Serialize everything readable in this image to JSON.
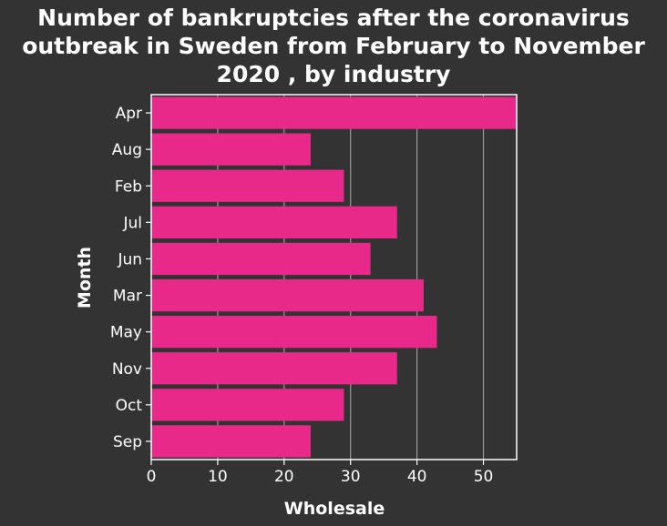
{
  "chart_data": {
    "type": "bar",
    "orientation": "horizontal",
    "title": "Number of bankruptcies after the coronavirus outbreak in Sweden from February to November 2020 , by industry",
    "xlabel": "Wholesale",
    "ylabel": "Month",
    "categories": [
      "Apr",
      "Aug",
      "Feb",
      "Jul",
      "Jun",
      "Mar",
      "May",
      "Nov",
      "Oct",
      "Sep"
    ],
    "values": [
      55,
      24,
      29,
      37,
      33,
      41,
      43,
      37,
      29,
      24
    ],
    "xlim": [
      0,
      55
    ],
    "xticks": [
      0,
      10,
      20,
      30,
      40,
      50
    ],
    "grid": "vertical",
    "legend": "none"
  },
  "colors": {
    "background": "#333333",
    "bar": "#e8298a",
    "grid": "#9a9a9a",
    "text": "#ffffff"
  }
}
